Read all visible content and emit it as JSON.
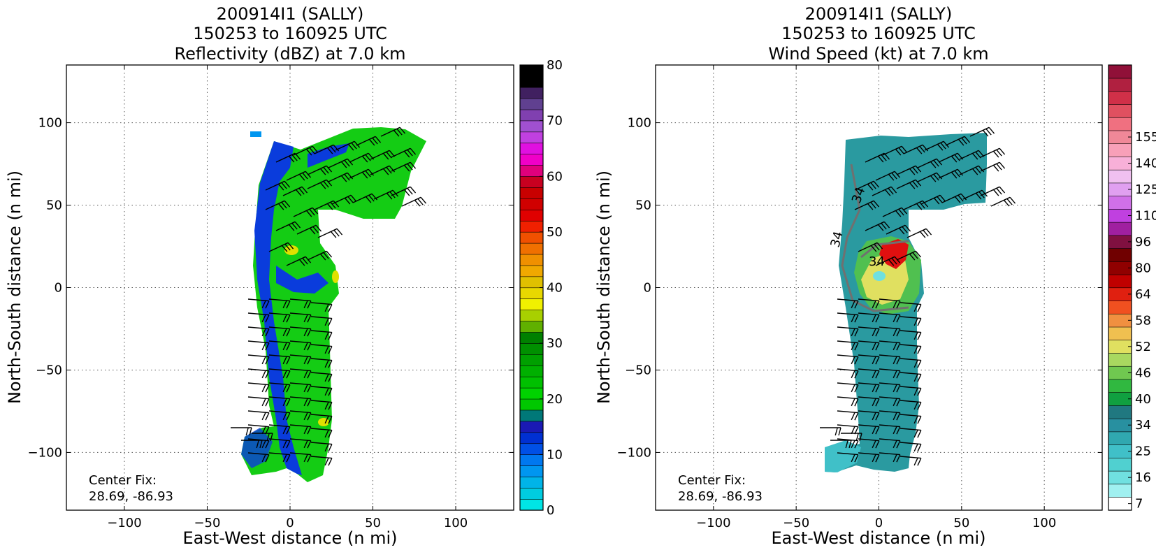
{
  "chart_data": [
    {
      "type": "heatmap",
      "title": [
        "200914I1 (SALLY)",
        "150253 to 160925 UTC",
        "Reflectivity (dBZ) at 7.0 km"
      ],
      "xlabel": "East-West distance (n mi)",
      "ylabel": "North-South distance (n mi)",
      "xlim": [
        -135,
        135
      ],
      "ylim": [
        -135,
        135
      ],
      "xticks": [
        -100,
        -50,
        0,
        50,
        100
      ],
      "yticks": [
        -100,
        -50,
        0,
        50,
        100
      ],
      "grid": true,
      "annotation": [
        "Center Fix:",
        "28.69, -86.93"
      ],
      "colorbar": {
        "min": 0,
        "max": 80,
        "ticks": [
          0,
          10,
          20,
          30,
          40,
          50,
          60,
          70,
          80
        ],
        "colors": [
          "#00e5e5",
          "#00cce0",
          "#00b4e8",
          "#0096f0",
          "#0078f0",
          "#0050e6",
          "#0030d2",
          "#1a1ab4",
          "#007878",
          "#00c800",
          "#00d200",
          "#00c000",
          "#00b000",
          "#00a000",
          "#009000",
          "#008000",
          "#60b000",
          "#a8d000",
          "#f0f000",
          "#e8d800",
          "#e0c000",
          "#f0a800",
          "#f09000",
          "#f07000",
          "#f05000",
          "#f02000",
          "#e00000",
          "#d00000",
          "#c80000",
          "#c80020",
          "#e0007c",
          "#f000c8",
          "#e010e0",
          "#c040e0",
          "#a050d0",
          "#8040b0",
          "#604090",
          "#402060",
          "#000000",
          "#000000"
        ]
      },
      "field_colors": {
        "low": "#0a3cdc",
        "mid": "#14cc14",
        "high": "#e0e000"
      },
      "wind_barbs": true
    },
    {
      "type": "heatmap",
      "title": [
        "200914I1 (SALLY)",
        "150253 to 160925 UTC",
        "Wind Speed (kt) at 7.0 km"
      ],
      "xlabel": "East-West distance (n mi)",
      "ylabel": "North-South distance (n mi)",
      "xlim": [
        -135,
        135
      ],
      "ylim": [
        -135,
        135
      ],
      "xticks": [
        -100,
        -50,
        0,
        50,
        100
      ],
      "yticks": [
        -100,
        -50,
        0,
        50,
        100
      ],
      "grid": true,
      "annotation": [
        "Center Fix:",
        "28.69, -86.93"
      ],
      "contour_labels": [
        "34",
        "34",
        "34"
      ],
      "colorbar": {
        "ticks": [
          {
            "label": "7",
            "index": 0
          },
          {
            "label": "16",
            "index": 2
          },
          {
            "label": "25",
            "index": 4
          },
          {
            "label": "34",
            "index": 6
          },
          {
            "label": "40",
            "index": 8
          },
          {
            "label": "46",
            "index": 10
          },
          {
            "label": "52",
            "index": 12
          },
          {
            "label": "58",
            "index": 14
          },
          {
            "label": "64",
            "index": 16
          },
          {
            "label": "80",
            "index": 18
          },
          {
            "label": "96",
            "index": 20
          },
          {
            "label": "110",
            "index": 22
          },
          {
            "label": "125",
            "index": 24
          },
          {
            "label": "140",
            "index": 26
          },
          {
            "label": "155",
            "index": 28
          }
        ],
        "colors": [
          "#ffffff",
          "#a0f0f0",
          "#70e0e0",
          "#50d0d0",
          "#40c0c8",
          "#30a8b0",
          "#2890a0",
          "#207880",
          "#10a040",
          "#30b840",
          "#70c850",
          "#a8d860",
          "#e0e060",
          "#f0c050",
          "#f09040",
          "#f05020",
          "#e02010",
          "#c00000",
          "#900000",
          "#700000",
          "#801040",
          "#a020a0",
          "#c040e0",
          "#d070e8",
          "#e0a0f0",
          "#f0c0f0",
          "#f8b0d8",
          "#f8a0b8",
          "#f08898",
          "#f07080",
          "#e05060",
          "#d03048",
          "#b02040",
          "#901038"
        ]
      },
      "field_colors": {
        "low": "#2a9aa0",
        "mid": "#50c050",
        "high": "#e0e060",
        "peak": "#e01010"
      },
      "wind_barbs": true
    }
  ]
}
